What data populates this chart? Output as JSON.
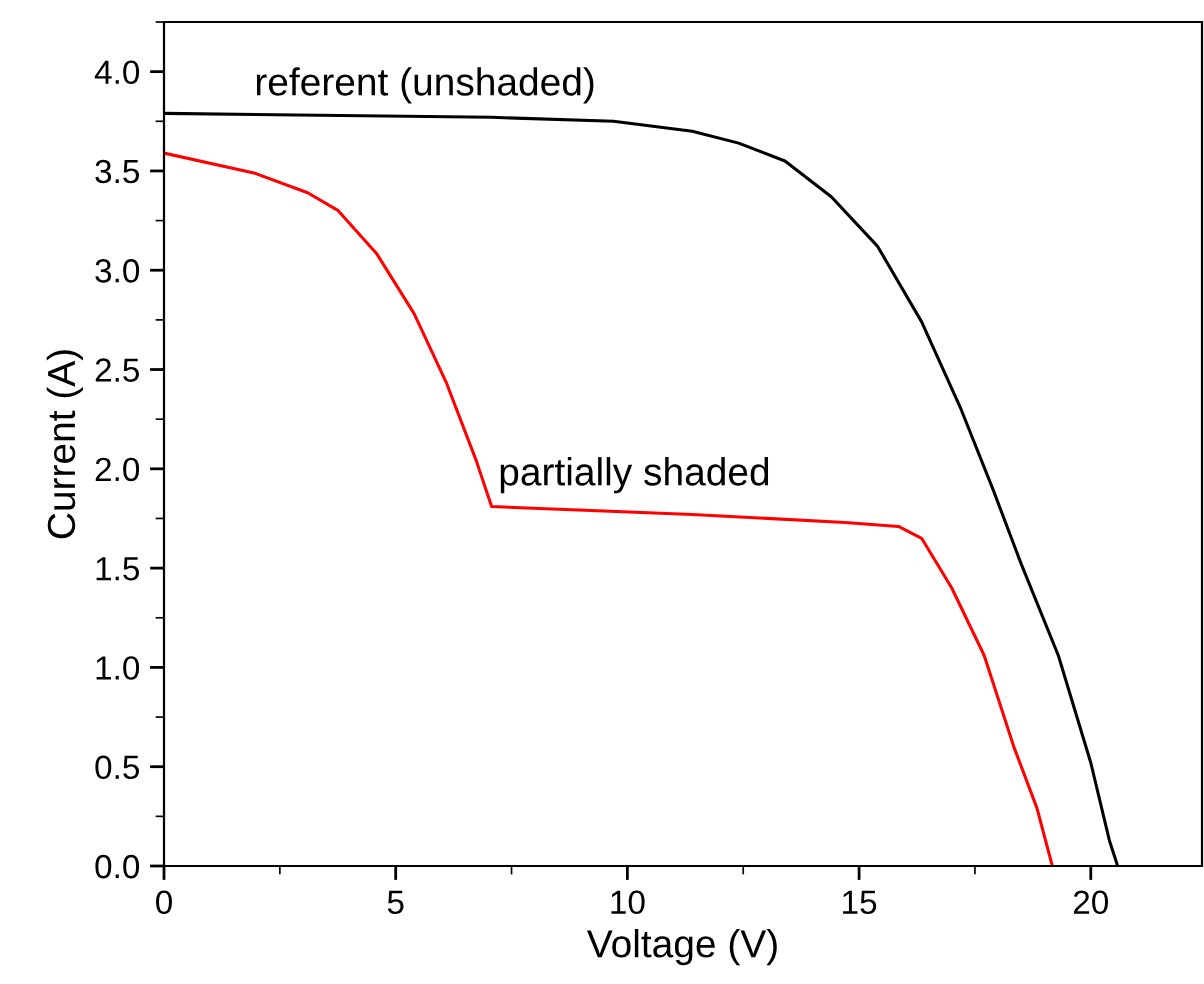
{
  "chart_data": {
    "type": "line",
    "xlabel": "Voltage (V)",
    "ylabel": "Current (A)",
    "xlim": [
      0,
      22.4
    ],
    "xticks": [
      0,
      5,
      10,
      15,
      20
    ],
    "ylim": [
      0,
      4.25
    ],
    "yticks": [
      {
        "value": 0,
        "label": "0.0"
      },
      {
        "value": 0.5,
        "label": "0.5"
      },
      {
        "value": 1,
        "label": "1.0"
      },
      {
        "value": 1.5,
        "label": "1.5"
      },
      {
        "value": 2,
        "label": "2.0"
      },
      {
        "value": 2.5,
        "label": "2.5"
      },
      {
        "value": 3,
        "label": "3.0"
      },
      {
        "value": 3.5,
        "label": "3.5"
      },
      {
        "value": 4,
        "label": "4.0"
      }
    ],
    "grid": false,
    "legend": false,
    "marker": "none",
    "line_style": "solid",
    "series": [
      {
        "name": "referent (unshaded)",
        "color": "#000000",
        "x": [
          0,
          7.07,
          9.7,
          11.4,
          12.4,
          13.4,
          14.4,
          15.4,
          16.35,
          17.2,
          17.9,
          18.5,
          19.3,
          20,
          20.4,
          20.58
        ],
        "values": [
          3.79,
          3.77,
          3.75,
          3.7,
          3.64,
          3.55,
          3.37,
          3.12,
          2.74,
          2.3,
          1.89,
          1.52,
          1.06,
          0.52,
          0.13,
          0
        ]
      },
      {
        "name": "partially shaded",
        "color": "#ff0000",
        "x": [
          0,
          1.94,
          3.1,
          3.76,
          4.6,
          5.4,
          6.1,
          6.74,
          7.07,
          11.4,
          14.7,
          15.85,
          16.35,
          17.0,
          17.7,
          18.34,
          18.84,
          19.17
        ],
        "values": [
          3.59,
          3.49,
          3.39,
          3.3,
          3.08,
          2.78,
          2.43,
          2.04,
          1.81,
          1.77,
          1.73,
          1.71,
          1.65,
          1.4,
          1.06,
          0.6,
          0.29,
          0
        ]
      }
    ]
  }
}
